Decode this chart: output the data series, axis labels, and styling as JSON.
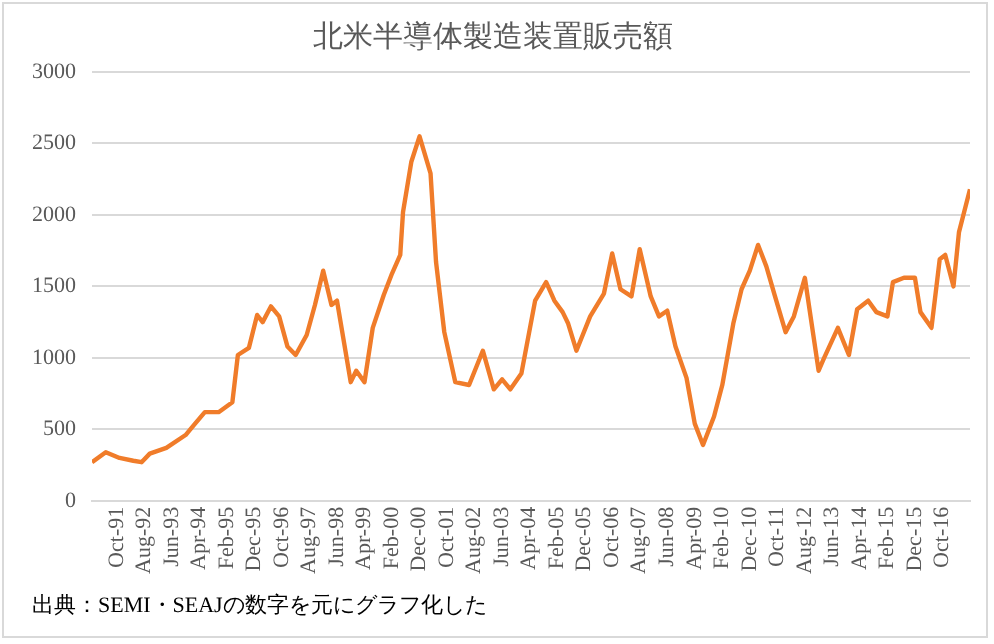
{
  "chart_data": {
    "type": "line",
    "title": "北米半導体製造装置販売額",
    "annotations": [
      "出典：SEMI・SEAJの数字を元にグラフ化した"
    ],
    "x": [
      "1991-01",
      "1991-06",
      "1991-11",
      "1992-04",
      "1992-07",
      "1992-10",
      "1993-04",
      "1993-11",
      "1994-02",
      "1994-06",
      "1994-11",
      "1995-04",
      "1995-06",
      "1995-10",
      "1996-01",
      "1996-03",
      "1996-06",
      "1996-09",
      "1996-12",
      "1997-03",
      "1997-07",
      "1997-10",
      "1998-01",
      "1998-04",
      "1998-06",
      "1998-11",
      "1999-01",
      "1999-04",
      "1999-07",
      "1999-11",
      "2000-02",
      "2000-05",
      "2000-06",
      "2000-09",
      "2000-12",
      "2001-04",
      "2001-06",
      "2001-09",
      "2002-01",
      "2002-06",
      "2002-11",
      "2003-03",
      "2003-06",
      "2003-09",
      "2004-01",
      "2004-06",
      "2004-10",
      "2005-01",
      "2005-04",
      "2005-06",
      "2005-09",
      "2006-02",
      "2006-07",
      "2006-10",
      "2007-01",
      "2007-05",
      "2007-08",
      "2007-12",
      "2008-03",
      "2008-06",
      "2008-09",
      "2009-01",
      "2009-04",
      "2009-07",
      "2009-11",
      "2010-02",
      "2010-06",
      "2010-09",
      "2010-12",
      "2011-03",
      "2011-06",
      "2011-09",
      "2012-01",
      "2012-04",
      "2012-08",
      "2013-01",
      "2013-03",
      "2013-08",
      "2013-12",
      "2014-03",
      "2014-07",
      "2014-10",
      "2015-02",
      "2015-04",
      "2015-08",
      "2015-12",
      "2016-02",
      "2016-06",
      "2016-09",
      "2016-11",
      "2017-02",
      "2017-04",
      "2017-08"
    ],
    "series": [
      {
        "color": "#f07c2a",
        "values": [
          270,
          340,
          300,
          280,
          270,
          330,
          370,
          460,
          530,
          620,
          620,
          690,
          1020,
          1070,
          1300,
          1250,
          1360,
          1290,
          1080,
          1020,
          1160,
          1370,
          1610,
          1370,
          1400,
          830,
          910,
          830,
          1210,
          1440,
          1590,
          1720,
          2020,
          2370,
          2550,
          2290,
          1670,
          1180,
          830,
          810,
          1050,
          780,
          850,
          780,
          890,
          1400,
          1530,
          1400,
          1320,
          1240,
          1050,
          1290,
          1450,
          1730,
          1480,
          1430,
          1760,
          1430,
          1290,
          1330,
          1080,
          860,
          540,
          390,
          590,
          810,
          1240,
          1480,
          1610,
          1790,
          1640,
          1440,
          1180,
          1290,
          1560,
          910,
          1000,
          1210,
          1020,
          1340,
          1400,
          1320,
          1290,
          1530,
          1560,
          1560,
          1320,
          1210,
          1690,
          1720,
          1500,
          1880,
          2180
        ]
      }
    ],
    "xlim": [
      "1991-01",
      "2017-08"
    ],
    "xticks": [
      {
        "value": "1991-10",
        "label": "Oct-91"
      },
      {
        "value": "1992-08",
        "label": "Aug-92"
      },
      {
        "value": "1993-06",
        "label": "Jun-93"
      },
      {
        "value": "1994-04",
        "label": "Apr-94"
      },
      {
        "value": "1995-02",
        "label": "Feb-95"
      },
      {
        "value": "1995-12",
        "label": "Dec-95"
      },
      {
        "value": "1996-10",
        "label": "Oct-96"
      },
      {
        "value": "1997-08",
        "label": "Aug-97"
      },
      {
        "value": "1998-06",
        "label": "Jun-98"
      },
      {
        "value": "1999-04",
        "label": "Apr-99"
      },
      {
        "value": "2000-02",
        "label": "Feb-00"
      },
      {
        "value": "2000-12",
        "label": "Dec-00"
      },
      {
        "value": "2001-10",
        "label": "Oct-01"
      },
      {
        "value": "2002-08",
        "label": "Aug-02"
      },
      {
        "value": "2003-06",
        "label": "Jun-03"
      },
      {
        "value": "2004-04",
        "label": "Apr-04"
      },
      {
        "value": "2005-02",
        "label": "Feb-05"
      },
      {
        "value": "2005-12",
        "label": "Dec-05"
      },
      {
        "value": "2006-10",
        "label": "Oct-06"
      },
      {
        "value": "2007-08",
        "label": "Aug-07"
      },
      {
        "value": "2008-06",
        "label": "Jun-08"
      },
      {
        "value": "2009-04",
        "label": "Apr-09"
      },
      {
        "value": "2010-02",
        "label": "Feb-10"
      },
      {
        "value": "2010-12",
        "label": "Dec-10"
      },
      {
        "value": "2011-10",
        "label": "Oct-11"
      },
      {
        "value": "2012-08",
        "label": "Aug-12"
      },
      {
        "value": "2013-06",
        "label": "Jun-13"
      },
      {
        "value": "2014-04",
        "label": "Apr-14"
      },
      {
        "value": "2015-02",
        "label": "Feb-15"
      },
      {
        "value": "2015-12",
        "label": "Dec-15"
      },
      {
        "value": "2016-10",
        "label": "Oct-16"
      }
    ],
    "ylim": [
      0,
      3000
    ],
    "yticks": [
      0,
      500,
      1000,
      1500,
      2000,
      2500,
      3000
    ],
    "grid": "y",
    "legend": false,
    "marker": "none",
    "line_style": "solid"
  }
}
